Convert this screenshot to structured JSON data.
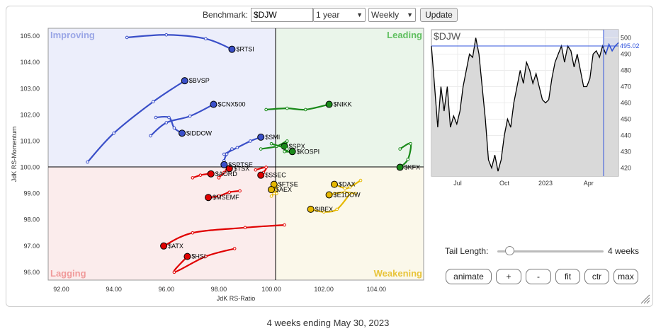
{
  "toolbar": {
    "benchmark_label": "Benchmark:",
    "benchmark_value": "$DJW",
    "period_value": "1 year",
    "interval_value": "Weekly",
    "update_label": "Update"
  },
  "controls": {
    "tail_length_label": "Tail Length:",
    "tail_length_value": "4 weeks",
    "tail_weeks": 4,
    "animate_label": "animate",
    "plus_label": "+",
    "minus_label": "-",
    "fit_label": "fit",
    "ctr_label": "ctr",
    "max_label": "max"
  },
  "caption": "4 weeks ending May 30, 2023",
  "chart_data": [
    {
      "type": "scatter",
      "title": "",
      "xlabel": "JdK RS-Ratio",
      "ylabel": "JdK RS-Momentum",
      "xlim": [
        91.5,
        105.8
      ],
      "ylim": [
        95.7,
        105.3
      ],
      "xticks": [
        "92.00",
        "94.00",
        "96.00",
        "98.00",
        "100.00",
        "102.00",
        "104.00"
      ],
      "yticks": [
        "96.00",
        "97.00",
        "98.00",
        "99.00",
        "100.00",
        "101.00",
        "102.00",
        "103.00",
        "104.00",
        "105.00"
      ],
      "quadrants": {
        "improving": "Improving",
        "leading": "Leading",
        "weakening": "Weakening",
        "lagging": "Lagging"
      },
      "colors": {
        "improving": "#3a4fc8",
        "leading": "#1a8a1a",
        "weakening": "#e6b800",
        "lagging": "#e00000"
      },
      "series": [
        {
          "name": "$RTSI",
          "quadrant": "improving",
          "points": [
            [
              94.5,
              104.95
            ],
            [
              96.0,
              105.05
            ],
            [
              97.5,
              104.9
            ],
            [
              98.5,
              104.5
            ]
          ]
        },
        {
          "name": "$BVSP",
          "quadrant": "improving",
          "points": [
            [
              93.0,
              100.2
            ],
            [
              94.0,
              101.3
            ],
            [
              95.5,
              102.5
            ],
            [
              96.7,
              103.3
            ]
          ]
        },
        {
          "name": "$CNX500",
          "quadrant": "improving",
          "points": [
            [
              95.4,
              101.2
            ],
            [
              96.0,
              101.7
            ],
            [
              96.9,
              101.95
            ],
            [
              97.8,
              102.4
            ]
          ]
        },
        {
          "name": "$IDDOW",
          "quadrant": "improving",
          "points": [
            [
              95.6,
              101.9
            ],
            [
              96.1,
              101.9
            ],
            [
              96.3,
              101.5
            ],
            [
              96.6,
              101.3
            ]
          ]
        },
        {
          "name": "$SMI",
          "quadrant": "improving",
          "points": [
            [
              98.2,
              100.5
            ],
            [
              98.7,
              100.75
            ],
            [
              99.2,
              101.0
            ],
            [
              99.6,
              101.15
            ]
          ]
        },
        {
          "name": "$SPTSE",
          "quadrant": "improving",
          "points": [
            [
              98.5,
              100.7
            ],
            [
              98.3,
              100.5
            ],
            [
              98.2,
              100.25
            ],
            [
              98.2,
              100.1
            ]
          ]
        },
        {
          "name": "$NIKK",
          "quadrant": "leading",
          "points": [
            [
              99.8,
              102.2
            ],
            [
              100.6,
              102.25
            ],
            [
              101.3,
              102.2
            ],
            [
              102.2,
              102.4
            ]
          ]
        },
        {
          "name": "$SPX",
          "quadrant": "leading",
          "points": [
            [
              99.6,
              100.7
            ],
            [
              100.2,
              100.8
            ],
            [
              100.6,
              101.0
            ],
            [
              100.5,
              100.8
            ]
          ]
        },
        {
          "name": "$KOSPI",
          "quadrant": "leading",
          "points": [
            [
              100.0,
              100.9
            ],
            [
              100.6,
              100.7
            ],
            [
              100.5,
              100.6
            ],
            [
              100.8,
              100.6
            ]
          ]
        },
        {
          "name": "$KFX",
          "quadrant": "leading",
          "points": [
            [
              104.9,
              100.7
            ],
            [
              105.3,
              100.9
            ],
            [
              105.2,
              100.3
            ],
            [
              104.9,
              100.0
            ]
          ]
        },
        {
          "name": "$TSX",
          "quadrant": "lagging",
          "points": [
            [
              98.0,
              99.6
            ],
            [
              98.2,
              99.8
            ],
            [
              98.3,
              99.9
            ],
            [
              98.4,
              99.95
            ]
          ]
        },
        {
          "name": "$AORD",
          "quadrant": "lagging",
          "points": [
            [
              97.0,
              99.6
            ],
            [
              97.3,
              99.7
            ],
            [
              97.6,
              99.75
            ],
            [
              97.7,
              99.75
            ]
          ]
        },
        {
          "name": "$SSEC",
          "quadrant": "lagging",
          "points": [
            [
              99.4,
              99.9
            ],
            [
              99.8,
              100.0
            ],
            [
              99.7,
              99.8
            ],
            [
              99.6,
              99.7
            ]
          ]
        },
        {
          "name": "$MSEMF",
          "quadrant": "lagging",
          "points": [
            [
              98.8,
              99.1
            ],
            [
              98.4,
              99.05
            ],
            [
              98.0,
              98.9
            ],
            [
              97.6,
              98.85
            ]
          ]
        },
        {
          "name": "$HSI",
          "quadrant": "lagging",
          "points": [
            [
              98.6,
              96.9
            ],
            [
              97.5,
              96.6
            ],
            [
              96.3,
              96.0
            ],
            [
              96.8,
              96.6
            ]
          ]
        },
        {
          "name": "$ATX",
          "quadrant": "lagging",
          "points": [
            [
              100.5,
              97.8
            ],
            [
              99.0,
              97.7
            ],
            [
              97.0,
              97.5
            ],
            [
              95.9,
              97.0
            ]
          ]
        },
        {
          "name": "$DAX",
          "quadrant": "weakening",
          "points": [
            [
              103.4,
              99.5
            ],
            [
              103.0,
              99.25
            ],
            [
              102.8,
              99.2
            ],
            [
              102.4,
              99.35
            ]
          ]
        },
        {
          "name": "$FTSE",
          "quadrant": "weakening",
          "points": [
            [
              100.2,
              99.3
            ],
            [
              100.0,
              99.1
            ],
            [
              100.2,
              99.0
            ],
            [
              100.1,
              99.35
            ]
          ]
        },
        {
          "name": "$E1DOW",
          "quadrant": "weakening",
          "points": [
            [
              103.2,
              99.0
            ],
            [
              102.8,
              99.05
            ],
            [
              102.4,
              99.0
            ],
            [
              102.2,
              98.95
            ]
          ]
        },
        {
          "name": "$AEX",
          "quadrant": "weakening",
          "points": [
            [
              100.1,
              99.0
            ],
            [
              100.0,
              98.9
            ],
            [
              100.2,
              99.15
            ],
            [
              100.0,
              99.15
            ]
          ]
        },
        {
          "name": "$IBEX",
          "quadrant": "weakening",
          "points": [
            [
              103.0,
              99.0
            ],
            [
              102.5,
              98.4
            ],
            [
              102.0,
              98.3
            ],
            [
              101.5,
              98.4
            ]
          ]
        }
      ]
    },
    {
      "type": "line",
      "title": "$DJW",
      "last_value": "495.02",
      "ylim": [
        415,
        505
      ],
      "yticks": [
        "420",
        "430",
        "440",
        "450",
        "460",
        "470",
        "480",
        "490",
        "500"
      ],
      "xticks": [
        "Jul",
        "Oct",
        "2023",
        "Apr"
      ],
      "values": [
        495,
        470,
        445,
        470,
        455,
        470,
        445,
        452,
        447,
        455,
        470,
        480,
        490,
        488,
        500,
        490,
        470,
        450,
        425,
        420,
        428,
        418,
        425,
        440,
        450,
        445,
        460,
        470,
        480,
        472,
        485,
        480,
        472,
        478,
        470,
        462,
        460,
        462,
        475,
        485,
        490,
        495,
        485,
        495,
        492,
        482,
        490,
        480,
        470,
        470,
        475,
        490,
        492,
        488,
        495,
        490,
        496,
        492,
        495,
        497
      ]
    }
  ]
}
